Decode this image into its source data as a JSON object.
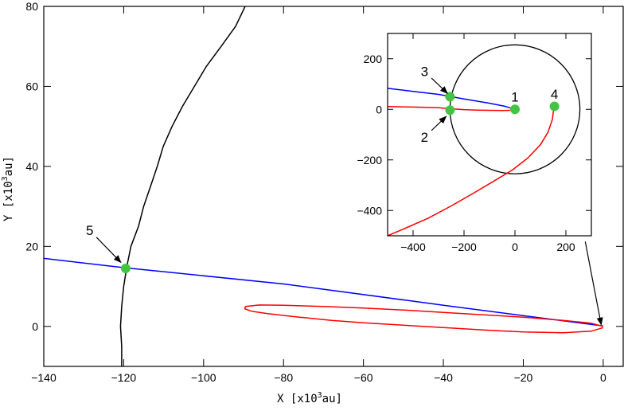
{
  "chart_data": [
    {
      "type": "line",
      "name": "main",
      "xlabel_parts": [
        "X [x10",
        "3",
        "au]"
      ],
      "ylabel_parts": [
        "Y [x10",
        "3",
        "au]"
      ],
      "xlim": [
        -140,
        5
      ],
      "ylim": [
        -10,
        80
      ],
      "xticks": [
        -140,
        -120,
        -100,
        -80,
        -60,
        -40,
        -20,
        0
      ],
      "yticks": [
        0,
        20,
        40,
        60,
        80
      ],
      "grid": false,
      "series": [
        {
          "color": "#000000",
          "points": [
            [
              -120.5,
              -10
            ],
            [
              -120.5,
              -5
            ],
            [
              -120.8,
              0
            ],
            [
              -120.5,
              5
            ],
            [
              -120,
              10
            ],
            [
              -119.2,
              15
            ],
            [
              -118.2,
              20
            ],
            [
              -116.3,
              25
            ],
            [
              -115,
              30
            ],
            [
              -113.3,
              35
            ],
            [
              -111.6,
              40
            ],
            [
              -110.1,
              45
            ],
            [
              -107.9,
              50
            ],
            [
              -105.3,
              55
            ],
            [
              -102.3,
              60
            ],
            [
              -99.3,
              65
            ],
            [
              -95.6,
              70
            ],
            [
              -92,
              75
            ],
            [
              -89.6,
              80
            ]
          ]
        },
        {
          "color": "#0000ff",
          "points": [
            [
              -140,
              17
            ],
            [
              -120,
              14.7
            ],
            [
              -80,
              10.6
            ],
            [
              -40,
              5.3
            ],
            [
              0,
              0.1
            ]
          ]
        },
        {
          "color": "#ff0000",
          "points": [
            [
              0,
              0
            ],
            [
              -3,
              0.8
            ],
            [
              -10,
              1.5
            ],
            [
              -20,
              2.3
            ],
            [
              -30,
              2.9
            ],
            [
              -40,
              3.5
            ],
            [
              -50,
              4.1
            ],
            [
              -60,
              4.6
            ],
            [
              -70,
              5
            ],
            [
              -80,
              5.3
            ],
            [
              -86,
              5.35
            ],
            [
              -89.5,
              5
            ],
            [
              -89.7,
              4.4
            ],
            [
              -88,
              3.8
            ],
            [
              -84,
              3.2
            ],
            [
              -76,
              2.3
            ],
            [
              -68,
              1.5
            ],
            [
              -60,
              0.9
            ],
            [
              -50,
              0.3
            ],
            [
              -40,
              -0.3
            ],
            [
              -30,
              -0.9
            ],
            [
              -20,
              -1.4
            ],
            [
              -10,
              -1.6
            ],
            [
              -3,
              -1.2
            ],
            [
              0,
              -0.3
            ]
          ]
        }
      ],
      "markers": [
        {
          "label": "5",
          "x": -119.5,
          "y": 14.5,
          "color": "#44c444"
        }
      ],
      "annotations": [
        {
          "text": "5",
          "x": -128.5,
          "y": 24,
          "arrow_to": [
            -120.7,
            16
          ]
        }
      ],
      "arrow_to_inset": {
        "from": [
          -4.5,
          21.2
        ],
        "to": [
          -0.5,
          0.4
        ]
      }
    },
    {
      "type": "line",
      "name": "inset",
      "xlim": [
        -500,
        300
      ],
      "ylim": [
        -500,
        300
      ],
      "xticks": [
        -400,
        -200,
        0,
        200
      ],
      "yticks": [
        -400,
        -200,
        0,
        200
      ],
      "grid": false,
      "circle": {
        "cx": 0,
        "cy": 0,
        "r": 255,
        "color": "#000000"
      },
      "series": [
        {
          "color": "#0000ff",
          "points": [
            [
              -500,
              83
            ],
            [
              -400,
              71
            ],
            [
              -300,
              59
            ],
            [
              -250,
              50
            ],
            [
              -200,
              41
            ],
            [
              -100,
              24
            ],
            [
              -40,
              12
            ],
            [
              -10,
              3
            ]
          ]
        },
        {
          "color": "#ff0000",
          "points": [
            [
              -500,
              11
            ],
            [
              -400,
              9
            ],
            [
              -300,
              6
            ],
            [
              -250,
              2
            ],
            [
              -200,
              -1
            ],
            [
              -150,
              -3
            ],
            [
              -100,
              -4
            ],
            [
              -50,
              -5
            ],
            [
              -20,
              -4
            ],
            [
              -5,
              0
            ]
          ]
        },
        {
          "color": "#ff0000",
          "points": [
            [
              -500,
              -500
            ],
            [
              -430,
              -470
            ],
            [
              -340,
              -430
            ],
            [
              -250,
              -382
            ],
            [
              -160,
              -330
            ],
            [
              -80,
              -282
            ],
            [
              -10,
              -240
            ],
            [
              50,
              -193
            ],
            [
              100,
              -140
            ],
            [
              130,
              -90
            ],
            [
              147,
              -40
            ],
            [
              152,
              0
            ],
            [
              155,
              12
            ]
          ]
        }
      ],
      "markers": [
        {
          "label": "1",
          "x": 0,
          "y": 0,
          "color": "#44c444"
        },
        {
          "label": "2",
          "x": -255,
          "y": -3,
          "color": "#44c444"
        },
        {
          "label": "3",
          "x": -255,
          "y": 50,
          "color": "#44c444"
        },
        {
          "label": "4",
          "x": 155,
          "y": 12,
          "color": "#44c444"
        }
      ],
      "annotations": [
        {
          "text": "1",
          "x": 0,
          "y": 50
        },
        {
          "text": "2",
          "x": -355,
          "y": -110,
          "arrow_to": [
            -270,
            -28
          ]
        },
        {
          "text": "3",
          "x": -355,
          "y": 150,
          "arrow_to": [
            -265,
            63
          ]
        },
        {
          "text": "4",
          "x": 155,
          "y": 60
        }
      ]
    }
  ]
}
